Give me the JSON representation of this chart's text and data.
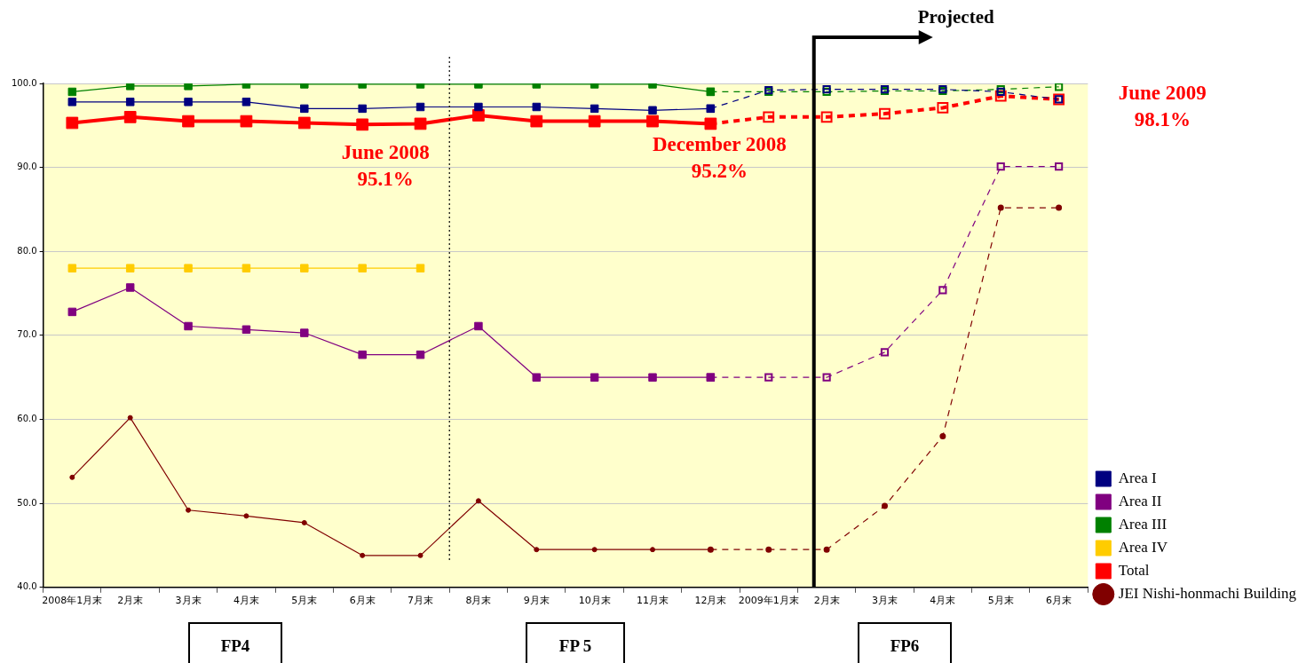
{
  "chart_data": {
    "type": "line",
    "categories": [
      "2008年1月末",
      "2月末",
      "3月末",
      "4月末",
      "5月末",
      "6月末",
      "7月末",
      "8月末",
      "9月末",
      "10月末",
      "11月末",
      "12月末",
      "2009年1月末",
      "2月末",
      "3月末",
      "4月末",
      "5月末",
      "6月末"
    ],
    "series": [
      {
        "name": "Area I",
        "color": "#000080",
        "marker": "square",
        "values": [
          97.8,
          97.8,
          97.8,
          97.8,
          97.0,
          97.0,
          97.2,
          97.2,
          97.2,
          97.0,
          96.8,
          97.0,
          null,
          null,
          null,
          null,
          null,
          null
        ]
      },
      {
        "name": "Area II",
        "color": "#800080",
        "marker": "square",
        "values": [
          72.8,
          75.7,
          71.1,
          70.7,
          70.3,
          67.7,
          67.7,
          71.1,
          65.0,
          65.0,
          65.0,
          65.0,
          null,
          null,
          null,
          null,
          null,
          null
        ]
      },
      {
        "name": "Area III",
        "color": "#008000",
        "marker": "square",
        "values": [
          99.0,
          99.7,
          99.7,
          99.9,
          99.9,
          99.9,
          99.9,
          99.9,
          99.9,
          99.9,
          99.9,
          99.0,
          null,
          null,
          null,
          null,
          null,
          null
        ]
      },
      {
        "name": "Area IV",
        "color": "#ffcc00",
        "marker": "square",
        "values": [
          78.0,
          78.0,
          78.0,
          78.0,
          78.0,
          78.0,
          78.0,
          null,
          null,
          null,
          null,
          null,
          null,
          null,
          null,
          null,
          null,
          null
        ]
      },
      {
        "name": "Total",
        "color": "#ff0000",
        "marker": "square",
        "values": [
          95.3,
          96.0,
          95.5,
          95.5,
          95.3,
          95.1,
          95.2,
          96.2,
          95.5,
          95.5,
          95.5,
          95.2,
          null,
          null,
          null,
          null,
          null,
          null
        ]
      },
      {
        "name": "JEI Nishi-honmachi Building",
        "color": "#800000",
        "marker": "circle",
        "values": [
          53.1,
          60.2,
          49.2,
          48.5,
          47.7,
          43.8,
          43.8,
          50.3,
          44.5,
          44.5,
          44.5,
          44.5,
          null,
          null,
          null,
          null,
          null,
          null
        ]
      },
      {
        "color": "#000080",
        "marker": "square",
        "line_style": "dashed",
        "values": [
          null,
          null,
          null,
          null,
          null,
          null,
          null,
          null,
          null,
          null,
          null,
          97.0,
          99.2,
          99.3,
          99.3,
          99.3,
          99.0,
          98.1
        ]
      },
      {
        "color": "#800080",
        "marker": "square",
        "line_style": "dashed",
        "values": [
          null,
          null,
          null,
          null,
          null,
          null,
          null,
          null,
          null,
          null,
          null,
          65.0,
          65.0,
          65.0,
          68.0,
          75.4,
          90.1,
          90.1
        ]
      },
      {
        "color": "#008000",
        "marker": "square",
        "line_style": "dashed",
        "values": [
          null,
          null,
          null,
          null,
          null,
          null,
          null,
          null,
          null,
          null,
          null,
          99.0,
          99.0,
          99.0,
          99.1,
          99.1,
          99.3,
          99.6
        ]
      },
      {
        "color": "#ff0000",
        "marker": "square",
        "line_style": "dashed",
        "values": [
          null,
          null,
          null,
          null,
          null,
          null,
          null,
          null,
          null,
          null,
          null,
          95.2,
          96.0,
          96.0,
          96.4,
          97.1,
          98.5,
          98.1
        ]
      },
      {
        "color": "#800000",
        "marker": "circle",
        "line_style": "dashed",
        "values": [
          null,
          null,
          null,
          null,
          null,
          null,
          null,
          null,
          null,
          null,
          null,
          44.5,
          44.5,
          44.5,
          49.7,
          58.0,
          85.2,
          85.2
        ]
      }
    ],
    "ylim": [
      40,
      100
    ],
    "yticks": [
      {
        "value": 40,
        "label": "40.0"
      },
      {
        "value": 50,
        "label": "50.0"
      },
      {
        "value": 60,
        "label": "60.0"
      },
      {
        "value": 70,
        "label": "70.0"
      },
      {
        "value": 80,
        "label": "80.0"
      },
      {
        "value": 90,
        "label": "90.0"
      },
      {
        "value": 100,
        "label": "100.0"
      }
    ],
    "grid": "y",
    "legend": "bottom right",
    "annotations": [
      "June 2008\n95.1%",
      "December 2008\n95.2%",
      "June 2009\n98.1%",
      "Projected",
      "FP4",
      "FP 5",
      "FP6"
    ]
  }
}
